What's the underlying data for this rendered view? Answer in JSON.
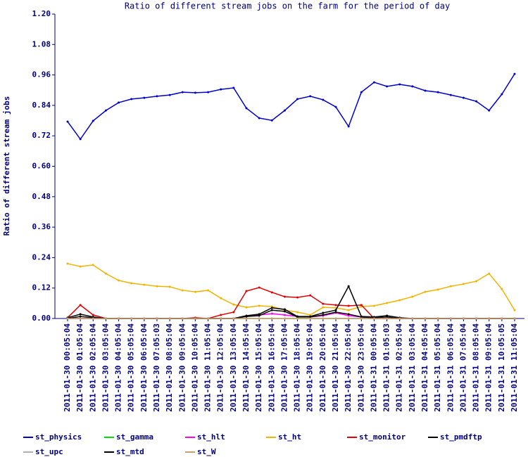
{
  "chart_data": {
    "type": "line",
    "title": "Ratio of different stream jobs on the farm for the period of day",
    "y_label": "Ratio of different stream jobs",
    "categories": [
      "2011-01-30 00:05:04",
      "2011-01-30 01:05:04",
      "2011-01-30 02:05:04",
      "2011-01-30 03:05:04",
      "2011-01-30 04:05:04",
      "2011-01-30 05:05:04",
      "2011-01-30 06:05:04",
      "2011-01-30 07:05:03",
      "2011-01-30 08:05:04",
      "2011-01-30 09:05:04",
      "2011-01-30 10:05:04",
      "2011-01-30 11:05:04",
      "2011-01-30 12:05:04",
      "2011-01-30 13:05:04",
      "2011-01-30 14:05:04",
      "2011-01-30 15:05:04",
      "2011-01-30 16:05:04",
      "2011-01-30 17:05:04",
      "2011-01-30 18:05:04",
      "2011-01-30 19:05:04",
      "2011-01-30 20:05:04",
      "2011-01-30 21:05:04",
      "2011-01-30 22:05:04",
      "2011-01-30 23:05:04",
      "2011-01-31 00:05:04",
      "2011-01-31 01:05:03",
      "2011-01-31 02:05:04",
      "2011-01-31 03:05:04",
      "2011-01-31 04:05:04",
      "2011-01-31 05:05:04",
      "2011-01-31 06:05:04",
      "2011-01-31 07:05:04",
      "2011-01-31 08:05:04",
      "2011-01-31 09:05:04",
      "2011-01-31 10:05:05",
      "2011-01-31 11:05:04"
    ],
    "series": [
      {
        "name": "st_physics",
        "color": "#0000cc",
        "values": [
          0.776,
          0.707,
          0.779,
          0.82,
          0.851,
          0.865,
          0.87,
          0.876,
          0.881,
          0.892,
          0.89,
          0.892,
          0.903,
          0.909,
          0.829,
          0.79,
          0.781,
          0.82,
          0.865,
          0.876,
          0.862,
          0.834,
          0.757,
          0.892,
          0.931,
          0.915,
          0.923,
          0.915,
          0.898,
          0.892,
          0.881,
          0.87,
          0.856,
          0.82,
          0.884,
          0.964
        ]
      },
      {
        "name": "st_gamma",
        "color": "#00dd00",
        "values": [
          0,
          0,
          0,
          0,
          0,
          0,
          0,
          0,
          0,
          0,
          0,
          0,
          0,
          0,
          0,
          0,
          0,
          0,
          0,
          0,
          0,
          0,
          0,
          0,
          0,
          0,
          0,
          0,
          0,
          0,
          0,
          0,
          0,
          0,
          0,
          0
        ]
      },
      {
        "name": "st_hlt",
        "color": "#ff00ff",
        "values": [
          0,
          0,
          0,
          0,
          0,
          0,
          0,
          0,
          0,
          0,
          0,
          0,
          0,
          0,
          0.008,
          0.014,
          0.019,
          0.014,
          0.008,
          0.006,
          0.011,
          0.022,
          0.011,
          0.006,
          0,
          0,
          0,
          0,
          0,
          0,
          0,
          0,
          0,
          0,
          0,
          0
        ]
      },
      {
        "name": "st_ht",
        "color": "#f0b400",
        "values": [
          0.216,
          0.205,
          0.211,
          0.177,
          0.15,
          0.139,
          0.133,
          0.127,
          0.125,
          0.111,
          0.105,
          0.111,
          0.08,
          0.055,
          0.044,
          0.05,
          0.047,
          0.033,
          0.025,
          0.014,
          0.044,
          0.042,
          0.033,
          0.047,
          0.05,
          0.061,
          0.072,
          0.086,
          0.105,
          0.114,
          0.127,
          0.136,
          0.147,
          0.177,
          0.116,
          0.033
        ]
      },
      {
        "name": "st_monitor",
        "color": "#e00000",
        "values": [
          0.003,
          0.053,
          0.014,
          0,
          0,
          0,
          0,
          0,
          0,
          0,
          0.003,
          0,
          0.014,
          0.025,
          0.108,
          0.122,
          0.103,
          0.086,
          0.083,
          0.091,
          0.058,
          0.053,
          0.05,
          0.053,
          0,
          0,
          0,
          0,
          0,
          0,
          0,
          0,
          0,
          0,
          0,
          0
        ]
      },
      {
        "name": "st_pmdftp",
        "color": "#000000",
        "values": [
          0.003,
          0.017,
          0.006,
          0,
          0,
          0,
          0,
          0,
          0,
          0,
          0,
          0,
          0,
          0,
          0.011,
          0.017,
          0.042,
          0.036,
          0.008,
          0.008,
          0.022,
          0.033,
          0.127,
          0.008,
          0.006,
          0.011,
          0.003,
          0,
          0,
          0,
          0,
          0,
          0,
          0,
          0,
          0
        ]
      },
      {
        "name": "st_upc",
        "color": "#b0b0b0",
        "values": [
          0,
          0,
          0,
          0,
          0,
          0,
          0,
          0,
          0,
          0,
          0,
          0,
          0,
          0,
          0,
          0,
          0,
          0,
          0,
          0,
          0,
          0,
          0,
          0,
          0,
          0,
          0,
          0,
          0,
          0,
          0,
          0,
          0,
          0,
          0,
          0
        ]
      },
      {
        "name": "st_mtd",
        "color": "#000000",
        "values": [
          0,
          0.008,
          0.003,
          0,
          0,
          0,
          0,
          0,
          0,
          0,
          0,
          0,
          0,
          0,
          0.008,
          0.011,
          0.033,
          0.028,
          0.006,
          0.006,
          0.014,
          0.025,
          0.017,
          0.006,
          0.003,
          0.006,
          0,
          0,
          0,
          0,
          0,
          0,
          0,
          0,
          0,
          0
        ]
      },
      {
        "name": "st_W",
        "color": "#c8a070",
        "values": [
          0,
          0,
          0,
          0,
          0,
          0,
          0,
          0,
          0,
          0,
          0,
          0,
          0,
          0,
          0,
          0,
          0,
          0,
          0,
          0,
          0,
          0,
          0,
          0,
          0,
          0,
          0,
          0,
          0,
          0,
          0,
          0,
          0,
          0,
          0,
          0
        ]
      }
    ],
    "ylim": [
      0,
      1.2
    ],
    "yticks": [
      {
        "value": 0,
        "label": "0.00"
      },
      {
        "value": 0.12,
        "label": "0.12"
      },
      {
        "value": 0.24,
        "label": "0.24"
      },
      {
        "value": 0.36,
        "label": "0.36"
      },
      {
        "value": 0.48,
        "label": "0.48"
      },
      {
        "value": 0.6,
        "label": "0.60"
      },
      {
        "value": 0.72,
        "label": "0.72"
      },
      {
        "value": 0.84,
        "label": "0.84"
      },
      {
        "value": 0.96,
        "label": "0.96"
      },
      {
        "value": 1.08,
        "label": "1.08"
      },
      {
        "value": 1.2,
        "label": "1.20"
      }
    ],
    "grid": false
  }
}
